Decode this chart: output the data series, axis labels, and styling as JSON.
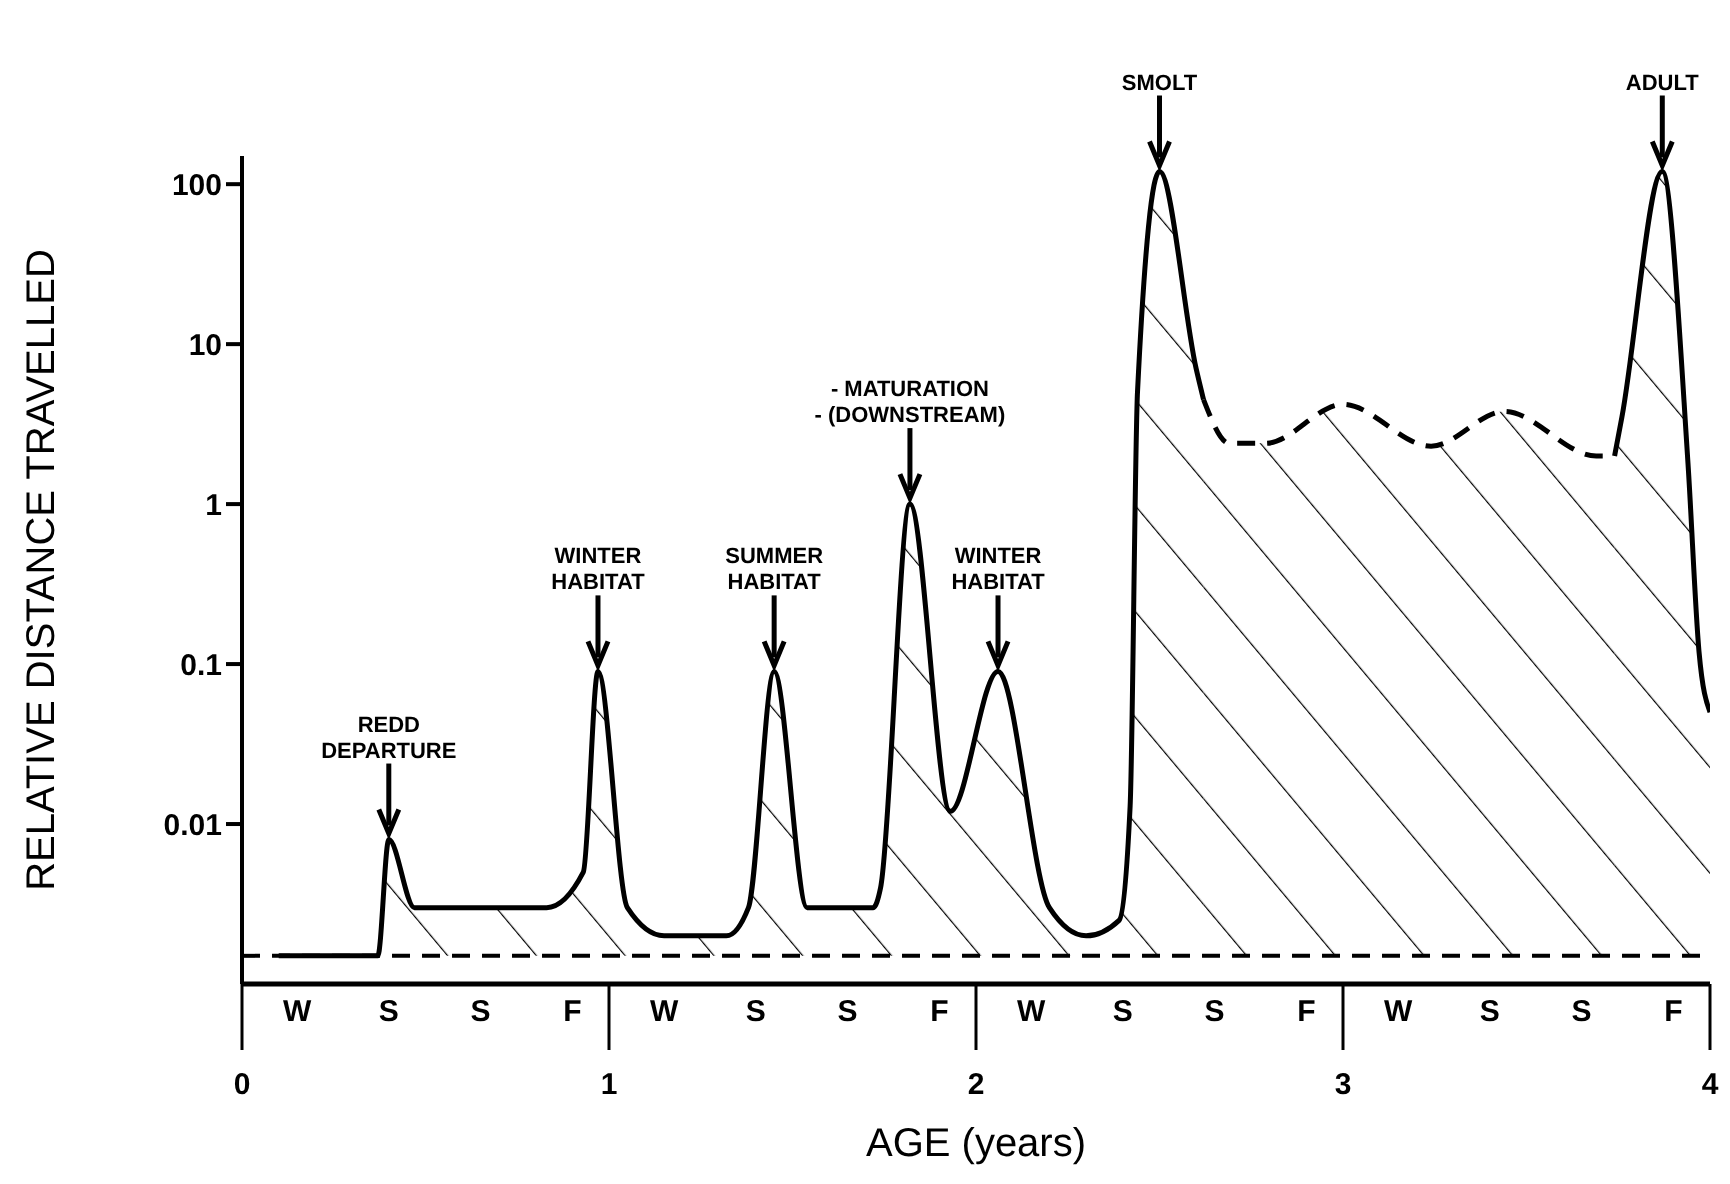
{
  "chart_data": {
    "type": "area",
    "xlabel": "AGE (years)",
    "ylabel": "RELATIVE DISTANCE TRAVELLED",
    "log": "y",
    "x": [
      0.1,
      0.37,
      0.4,
      0.47,
      0.83,
      0.93,
      0.97,
      1.05,
      1.15,
      1.32,
      1.38,
      1.45,
      1.54,
      1.72,
      1.74,
      1.82,
      1.93,
      2.06,
      2.2,
      2.3,
      2.39,
      2.42,
      2.44,
      2.5,
      2.6,
      2.62,
      2.69,
      2.79,
      3.0,
      3.24,
      3.44,
      3.69,
      3.74,
      3.76,
      3.87,
      3.94,
      3.97,
      4.0
    ],
    "series": [
      {
        "color": "#000000",
        "line_style": "solid",
        "values": [
          0.0015,
          0.0015,
          0.008,
          0.003,
          0.003,
          0.005,
          0.09,
          0.003,
          0.002,
          0.002,
          0.003,
          0.09,
          0.003,
          0.003,
          0.004,
          1,
          0.012,
          0.09,
          0.003,
          0.002,
          0.0025,
          0.013,
          5,
          120,
          7,
          4.5,
          null,
          null,
          null,
          null,
          null,
          null,
          2,
          3.5,
          120,
          1.8,
          0.12,
          0.05
        ]
      },
      {
        "color": "#000000",
        "line_style": "dashed",
        "values": [
          null,
          null,
          null,
          null,
          null,
          null,
          null,
          null,
          null,
          null,
          null,
          null,
          null,
          null,
          null,
          null,
          null,
          null,
          null,
          null,
          null,
          null,
          null,
          null,
          null,
          4.5,
          2.4,
          2.4,
          4.2,
          2.3,
          3.8,
          2,
          2,
          null,
          null,
          null,
          null,
          null
        ]
      }
    ],
    "xlim": [
      0,
      4
    ],
    "xticks": [
      0,
      1,
      2,
      3,
      4
    ],
    "ylim": [
      0.001,
      150
    ],
    "yticks": [
      0.01,
      0.1,
      1,
      10,
      100
    ],
    "ref_lines": [
      {
        "axis": "y",
        "value": 0.0015,
        "line_style": "dashed",
        "color": "#000000"
      }
    ],
    "annotations": [
      {
        "text": "REDD\nDEPARTURE",
        "x": 0.4,
        "y": 0.008
      },
      {
        "text": "WINTER\nHABITAT",
        "x": 0.97,
        "y": 0.09
      },
      {
        "text": "SUMMER\nHABITAT",
        "x": 1.45,
        "y": 0.09
      },
      {
        "text": "- MATURATION\n- (DOWNSTREAM)",
        "x": 1.82,
        "y": 1
      },
      {
        "text": "WINTER\nHABITAT",
        "x": 2.06,
        "y": 0.09
      },
      {
        "text": "SMOLT",
        "x": 2.5,
        "y": 120
      },
      {
        "text": "ADULT",
        "x": 3.87,
        "y": 120
      },
      "W",
      "S",
      "S",
      "F",
      "W",
      "S",
      "S",
      "F",
      "W",
      "S",
      "S",
      "F",
      "W",
      "S",
      "S",
      "F"
    ]
  }
}
